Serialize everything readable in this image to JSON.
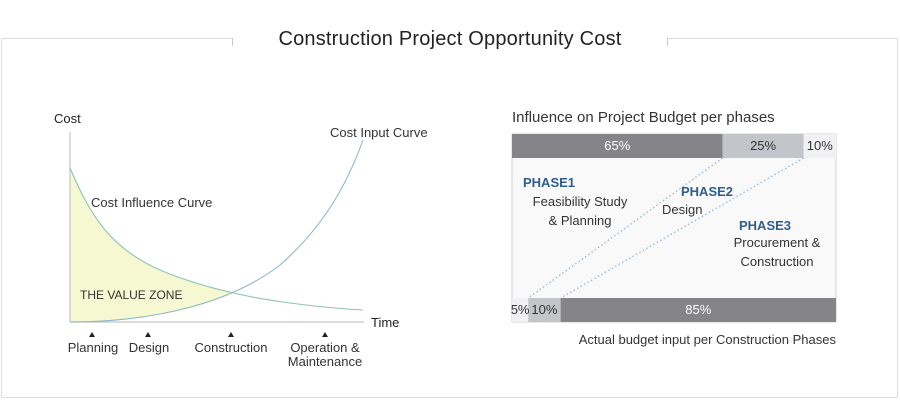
{
  "title": "Construction Project Opportunity Cost",
  "left_chart": {
    "y_axis_label": "Cost",
    "x_axis_label": "Time",
    "cost_input_curve_label": "Cost Input Curve",
    "cost_influence_curve_label": "Cost Influence Curve",
    "value_zone_label": "THE VALUE ZONE",
    "phases": [
      {
        "label": "Planning"
      },
      {
        "label": "Design"
      },
      {
        "label": "Construction"
      },
      {
        "label": "Operation &",
        "label2": "Maintenance"
      }
    ],
    "colors": {
      "value_zone_fill": "#f6f8d2",
      "cost_input_curve": "#8fb5d0",
      "cost_influence_curve": "#8cc2b8",
      "axis": "#c5c5c5"
    }
  },
  "right_chart": {
    "title": "Influence on Project Budget per phases",
    "bottom_caption": "Actual budget input per Construction Phases",
    "top_bar": [
      {
        "label": "65%",
        "value": 65,
        "color": "#858589"
      },
      {
        "label": "25%",
        "value": 25,
        "color": "#c4c5ca"
      },
      {
        "label": "10%",
        "value": 10,
        "color": "#f1f1f3"
      }
    ],
    "bottom_bar": [
      {
        "label": "5%",
        "value": 5,
        "color": "#f1f1f3"
      },
      {
        "label": "10%",
        "value": 10,
        "color": "#c4c5ca"
      },
      {
        "label": "85%",
        "value": 85,
        "color": "#858589"
      }
    ],
    "phases": [
      {
        "heading": "PHASE1",
        "line1": "Feasibility Study",
        "line2": "& Planning"
      },
      {
        "heading": "PHASE2",
        "line1": "Design",
        "line2": ""
      },
      {
        "heading": "PHASE3",
        "line1": "Procurement &",
        "line2": "Construction"
      }
    ],
    "colors": {
      "phase_heading": "#2f5d8e",
      "dotted_line": "#9ab6d2",
      "panel_border": "#d0d0d0"
    }
  }
}
